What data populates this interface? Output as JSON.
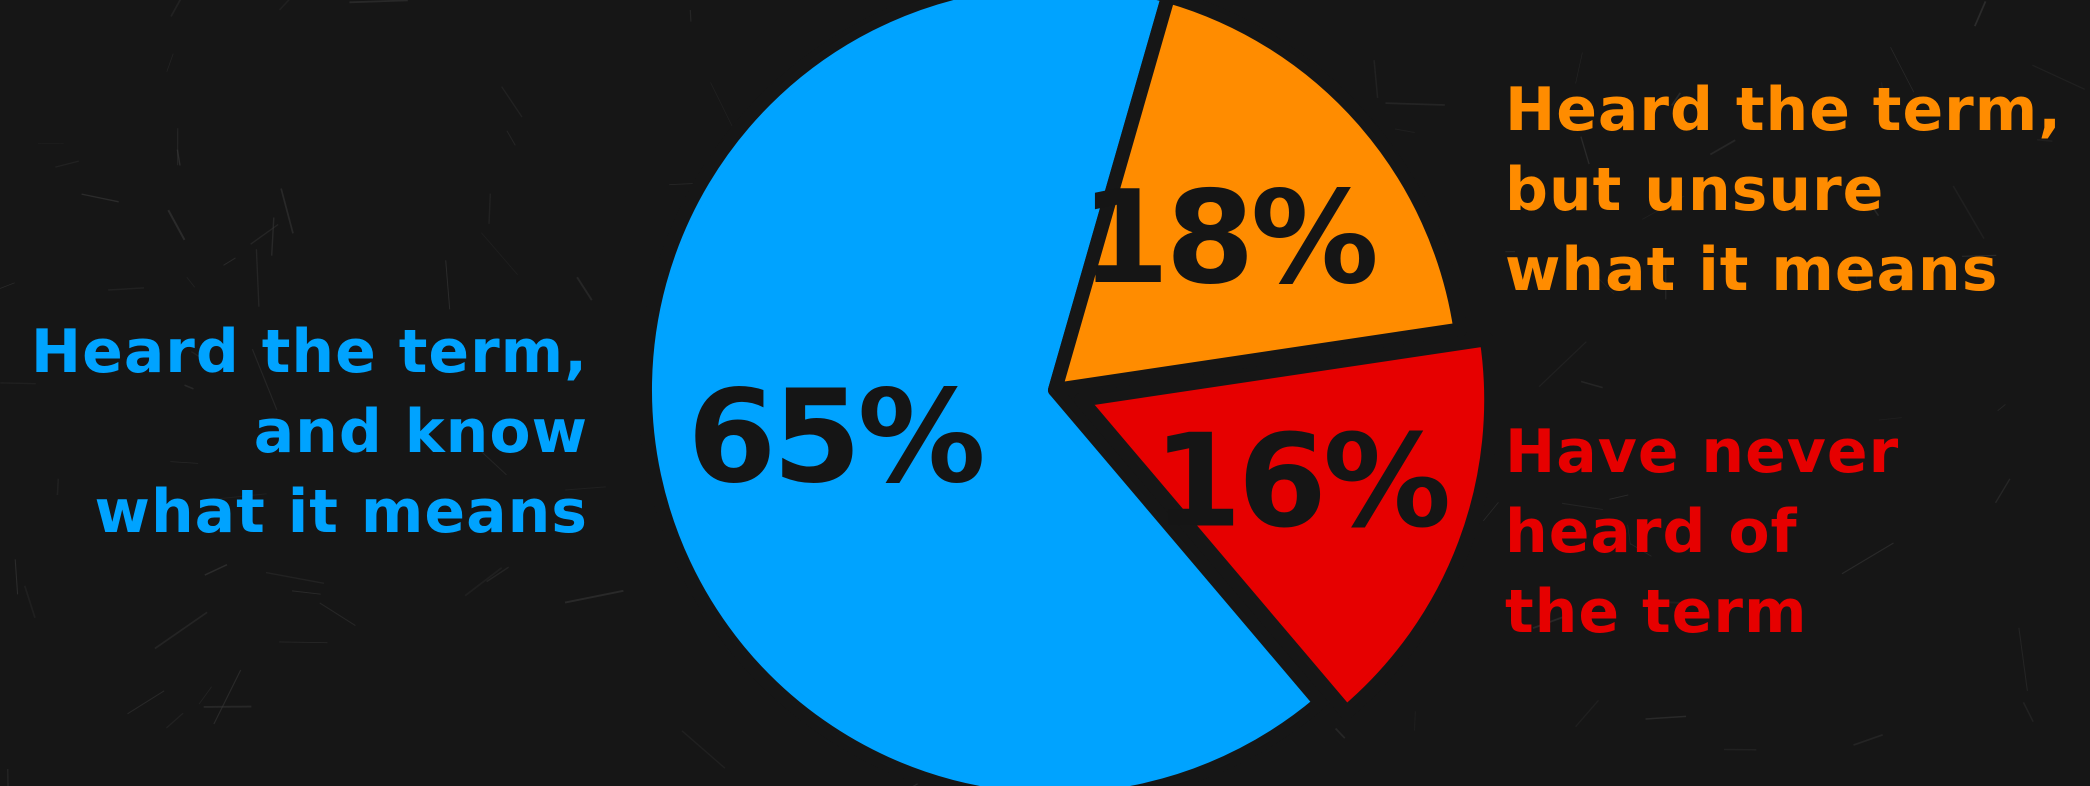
{
  "chart_data": {
    "type": "pie",
    "title": "",
    "slices": [
      {
        "label_lines": [
          "Heard the term,",
          "and know",
          "what it means"
        ],
        "value": 65,
        "value_label": "65%",
        "color": "#00A3FF"
      },
      {
        "label_lines": [
          "Heard the term,",
          "but unsure",
          "what it means"
        ],
        "value": 18,
        "value_label": "18%",
        "color": "#FF8C00"
      },
      {
        "label_lines": [
          "Have never",
          "heard of",
          "the term"
        ],
        "value": 16,
        "value_label": "16%",
        "color": "#E60000",
        "exploded": true
      }
    ],
    "background_color": "#161616",
    "value_label_color": "#151515"
  }
}
